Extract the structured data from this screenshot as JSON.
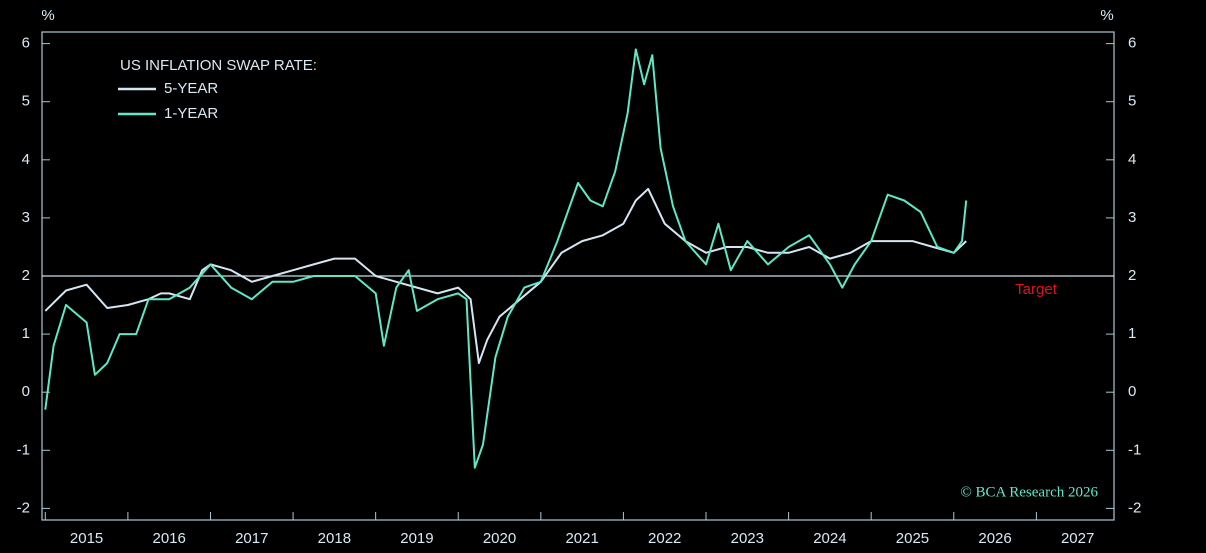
{
  "chart_data": {
    "type": "line",
    "legend_title": "US INFLATION SWAP RATE:",
    "y_unit": "%",
    "source": "© BCA Research 2026",
    "target": {
      "label": "Target",
      "value": 2,
      "color": "#e0101a"
    },
    "xlim": [
      2014.96,
      2027.94
    ],
    "xticks": [
      2015,
      2016,
      2017,
      2018,
      2019,
      2020,
      2021,
      2022,
      2023,
      2024,
      2025,
      2026,
      2027
    ],
    "ylim": [
      -2.2,
      6.2
    ],
    "yticks": [
      -2,
      -1,
      0,
      1,
      2,
      3,
      4,
      5,
      6
    ],
    "series": [
      {
        "name": "5-YEAR",
        "color": "#d4e6f2",
        "x": [
          2015.0,
          2015.25,
          2015.5,
          2015.75,
          2016.0,
          2016.25,
          2016.4,
          2016.5,
          2016.75,
          2016.9,
          2017.0,
          2017.25,
          2017.5,
          2017.75,
          2018.0,
          2018.25,
          2018.5,
          2018.75,
          2019.0,
          2019.25,
          2019.5,
          2019.75,
          2020.0,
          2020.15,
          2020.25,
          2020.35,
          2020.5,
          2020.75,
          2021.0,
          2021.25,
          2021.5,
          2021.75,
          2022.0,
          2022.15,
          2022.3,
          2022.5,
          2022.75,
          2023.0,
          2023.25,
          2023.5,
          2023.75,
          2024.0,
          2024.25,
          2024.5,
          2024.75,
          2025.0,
          2025.25,
          2025.5,
          2025.75,
          2026.0,
          2026.15
        ],
        "values": [
          1.4,
          1.75,
          1.85,
          1.45,
          1.5,
          1.6,
          1.7,
          1.7,
          1.6,
          2.1,
          2.2,
          2.1,
          1.9,
          2.0,
          2.1,
          2.2,
          2.3,
          2.3,
          2.0,
          1.9,
          1.8,
          1.7,
          1.8,
          1.6,
          0.5,
          0.9,
          1.3,
          1.6,
          1.9,
          2.4,
          2.6,
          2.7,
          2.9,
          3.3,
          3.5,
          2.9,
          2.6,
          2.4,
          2.5,
          2.5,
          2.4,
          2.4,
          2.5,
          2.3,
          2.4,
          2.6,
          2.6,
          2.6,
          2.5,
          2.4,
          2.6
        ]
      },
      {
        "name": "1-YEAR",
        "color": "#5ee8c6",
        "x": [
          2015.0,
          2015.1,
          2015.25,
          2015.5,
          2015.6,
          2015.75,
          2015.9,
          2016.1,
          2016.25,
          2016.5,
          2016.75,
          2017.0,
          2017.25,
          2017.5,
          2017.75,
          2018.0,
          2018.25,
          2018.5,
          2018.75,
          2019.0,
          2019.1,
          2019.25,
          2019.4,
          2019.5,
          2019.75,
          2020.0,
          2020.1,
          2020.2,
          2020.3,
          2020.45,
          2020.6,
          2020.8,
          2021.0,
          2021.2,
          2021.45,
          2021.6,
          2021.75,
          2021.9,
          2022.05,
          2022.15,
          2022.25,
          2022.35,
          2022.45,
          2022.6,
          2022.75,
          2023.0,
          2023.15,
          2023.3,
          2023.5,
          2023.75,
          2024.0,
          2024.25,
          2024.5,
          2024.65,
          2024.8,
          2025.0,
          2025.2,
          2025.4,
          2025.6,
          2025.8,
          2026.0,
          2026.1,
          2026.15
        ],
        "values": [
          -0.3,
          0.8,
          1.5,
          1.2,
          0.3,
          0.5,
          1.0,
          1.0,
          1.6,
          1.6,
          1.8,
          2.2,
          1.8,
          1.6,
          1.9,
          1.9,
          2.0,
          2.0,
          2.0,
          1.7,
          0.8,
          1.8,
          2.1,
          1.4,
          1.6,
          1.7,
          1.6,
          -1.3,
          -0.9,
          0.6,
          1.3,
          1.8,
          1.9,
          2.6,
          3.6,
          3.3,
          3.2,
          3.8,
          4.8,
          5.9,
          5.3,
          5.8,
          4.2,
          3.2,
          2.6,
          2.2,
          2.9,
          2.1,
          2.6,
          2.2,
          2.5,
          2.7,
          2.2,
          1.8,
          2.2,
          2.6,
          3.4,
          3.3,
          3.1,
          2.5,
          2.4,
          2.6,
          3.3
        ]
      }
    ]
  }
}
